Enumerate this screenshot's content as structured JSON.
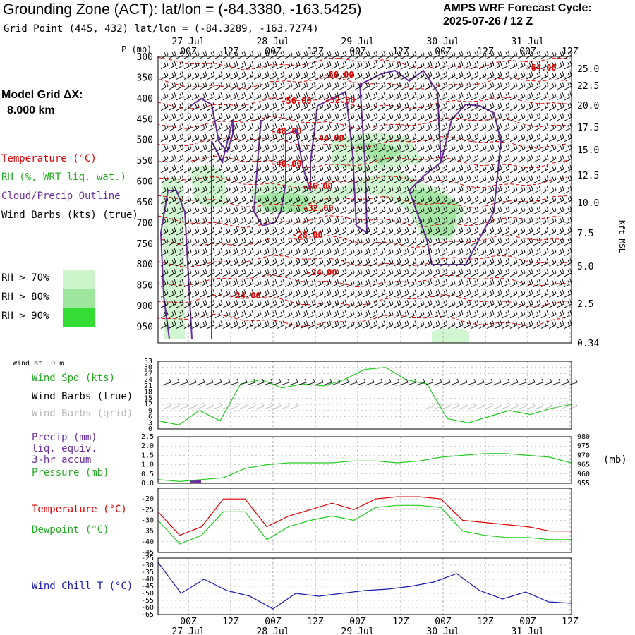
{
  "header": {
    "title": "Grounding Zone (ACT):  lat/lon = (-84.3380, -163.5425)",
    "subtitle": "Grid Point (445, 432) lat/lon = (-84.3289, -163.7274)",
    "cycle_line1": "AMPS WRF Forecast Cycle:",
    "cycle_line2": "2025-07-26 / 12  Z",
    "grid_label": "Model Grid ΔX:",
    "grid_value": "8.000 km"
  },
  "legend": {
    "temperature": "Temperature (°C)",
    "rh": "RH (%, WRT liq. wat.)",
    "cloud": "Cloud/Precip Outline",
    "wind": "Wind Barbs (kts) (true)",
    "rh70": "RH > 70%",
    "rh80": "RH > 80%",
    "rh90": "RH > 90%"
  },
  "colors": {
    "temperature": "#e00000",
    "rh70": "#ccf5cc",
    "rh80": "#9ee69e",
    "rh90": "#33dd33",
    "cloud": "#6a2fa0",
    "wind_spd": "#22cc22",
    "pressure": "#22cc22",
    "precip": "#6a2fa0",
    "dewpoint": "#22cc22",
    "windchill": "#1a1ab0",
    "grid": "#999999"
  },
  "time_axis": {
    "top_days": [
      "27 Jul",
      "28 Jul",
      "29 Jul",
      "30 Jul",
      "31 Jul"
    ],
    "ticks": [
      "00Z",
      "12Z",
      "00Z",
      "12Z",
      "00Z",
      "12Z",
      "00Z",
      "12Z",
      "00Z",
      "12Z"
    ],
    "bottom_days": [
      "27 Jul",
      "28 Jul",
      "29 Jul",
      "30 Jul",
      "31 Jul"
    ]
  },
  "chart_data": [
    {
      "type": "heatmap",
      "title": "Grounding Zone (ACT):  lat/lon = (-84.3380, -163.5425)",
      "ylabel_left": "P (mb)",
      "ylabel_right": "Kft MSL",
      "y_ticks": [
        300,
        350,
        400,
        450,
        500,
        550,
        600,
        650,
        700,
        750,
        800,
        850,
        900,
        950
      ],
      "y_right_ticks": [
        "25.0",
        "22.5",
        "20.0",
        "17.5",
        "15.0",
        "12.5",
        "10.0",
        "7.5",
        "5.0",
        "2.5",
        "0.34"
      ],
      "temperature_labels": [
        "-60.00",
        "-56.00",
        "-52.00",
        "-64.00",
        "-48.00",
        "-44.00",
        "-40.00",
        "-36.00",
        "-32.00",
        "-28.00",
        "-24.00",
        "-24.00"
      ],
      "rh_thresholds": [
        "RH > 70%",
        "RH > 80%",
        "RH > 90%"
      ],
      "grid": true
    },
    {
      "type": "line",
      "title": "Wind at 10 m",
      "series": [
        {
          "name": "Wind Spd (kts)",
          "values": [
            4,
            2,
            9,
            4,
            22,
            24,
            20,
            22,
            21,
            24,
            29,
            30,
            24,
            22,
            5,
            3,
            6,
            9,
            7,
            10,
            12
          ]
        }
      ],
      "secondary_series_labels": [
        "Wind Barbs (true)",
        "Wind Barbs (grid)"
      ],
      "y_ticks": [
        0,
        3,
        6,
        9,
        12,
        15,
        18,
        21,
        24,
        27,
        30,
        33
      ],
      "ylim": [
        0,
        33
      ],
      "grid": true
    },
    {
      "type": "line",
      "series": [
        {
          "name": "Precip (mm) liq. equiv. 3-hr accum",
          "values": [
            0.17
          ]
        },
        {
          "name": "Pressure (mb)",
          "values": [
            957,
            956,
            957,
            958,
            963,
            965,
            966,
            966,
            966,
            967,
            967,
            966,
            967,
            969,
            970,
            971,
            971,
            970,
            969,
            966
          ]
        }
      ],
      "series_label_lines": [
        "Precip (mm)",
        "liq. equiv.",
        "3-hr accum"
      ],
      "y_left_ticks": [
        "0.0",
        "0.5",
        "1.0",
        "1.5",
        "2.0",
        "2.5"
      ],
      "y_right_ticks": [
        "955",
        "960",
        "965",
        "970",
        "975",
        "980"
      ],
      "y_right_unit": "(mb)",
      "ylim": [
        0,
        2.5
      ],
      "y2lim": [
        955,
        980
      ],
      "grid": true
    },
    {
      "type": "line",
      "series": [
        {
          "name": "Temperature (°C)",
          "values": [
            -26,
            -37,
            -33,
            -20,
            -20,
            -33,
            -28,
            -25,
            -22,
            -25,
            -20,
            -19,
            -19,
            -20,
            -30,
            -31,
            -32,
            -33,
            -35,
            -35
          ]
        },
        {
          "name": "Dewpoint (°C)",
          "values": [
            -30,
            -41,
            -37,
            -26,
            -26,
            -39,
            -33,
            -30,
            -28,
            -30,
            -24,
            -23,
            -23,
            -24,
            -35,
            -37,
            -38,
            -38,
            -39,
            -39
          ]
        }
      ],
      "y_ticks": [
        -20,
        -25,
        -30,
        -35,
        -40,
        -45
      ],
      "ylim": [
        -45,
        -15
      ],
      "grid": true
    },
    {
      "type": "line",
      "series": [
        {
          "name": "Wind Chill T (°C)",
          "values": [
            -28,
            -50,
            -40,
            -48,
            -52,
            -61,
            -50,
            -52,
            -50,
            -48,
            -47,
            -45,
            -42,
            -36,
            -48,
            -54,
            -49,
            -56,
            -57
          ]
        }
      ],
      "y_ticks": [
        -25,
        -30,
        -35,
        -40,
        -45,
        -50,
        -55,
        -60,
        -65
      ],
      "ylim": [
        -65,
        -25
      ],
      "grid": true
    }
  ],
  "panels": {
    "wind_at_10m": "Wind at 10 m",
    "wind_spd": "Wind Spd (kts)",
    "wind_barbs_true": "Wind Barbs (true)",
    "wind_barbs_grid": "Wind Barbs (grid)",
    "precip": "Precip (mm)",
    "liq_equiv": "liq. equiv.",
    "accum": "3-hr accum",
    "pressure": "Pressure (mb)",
    "pressure_unit": "(mb)",
    "temperature": "Temperature (°C)",
    "dewpoint": "Dewpoint (°C)",
    "windchill": "Wind Chill T (°C)"
  }
}
